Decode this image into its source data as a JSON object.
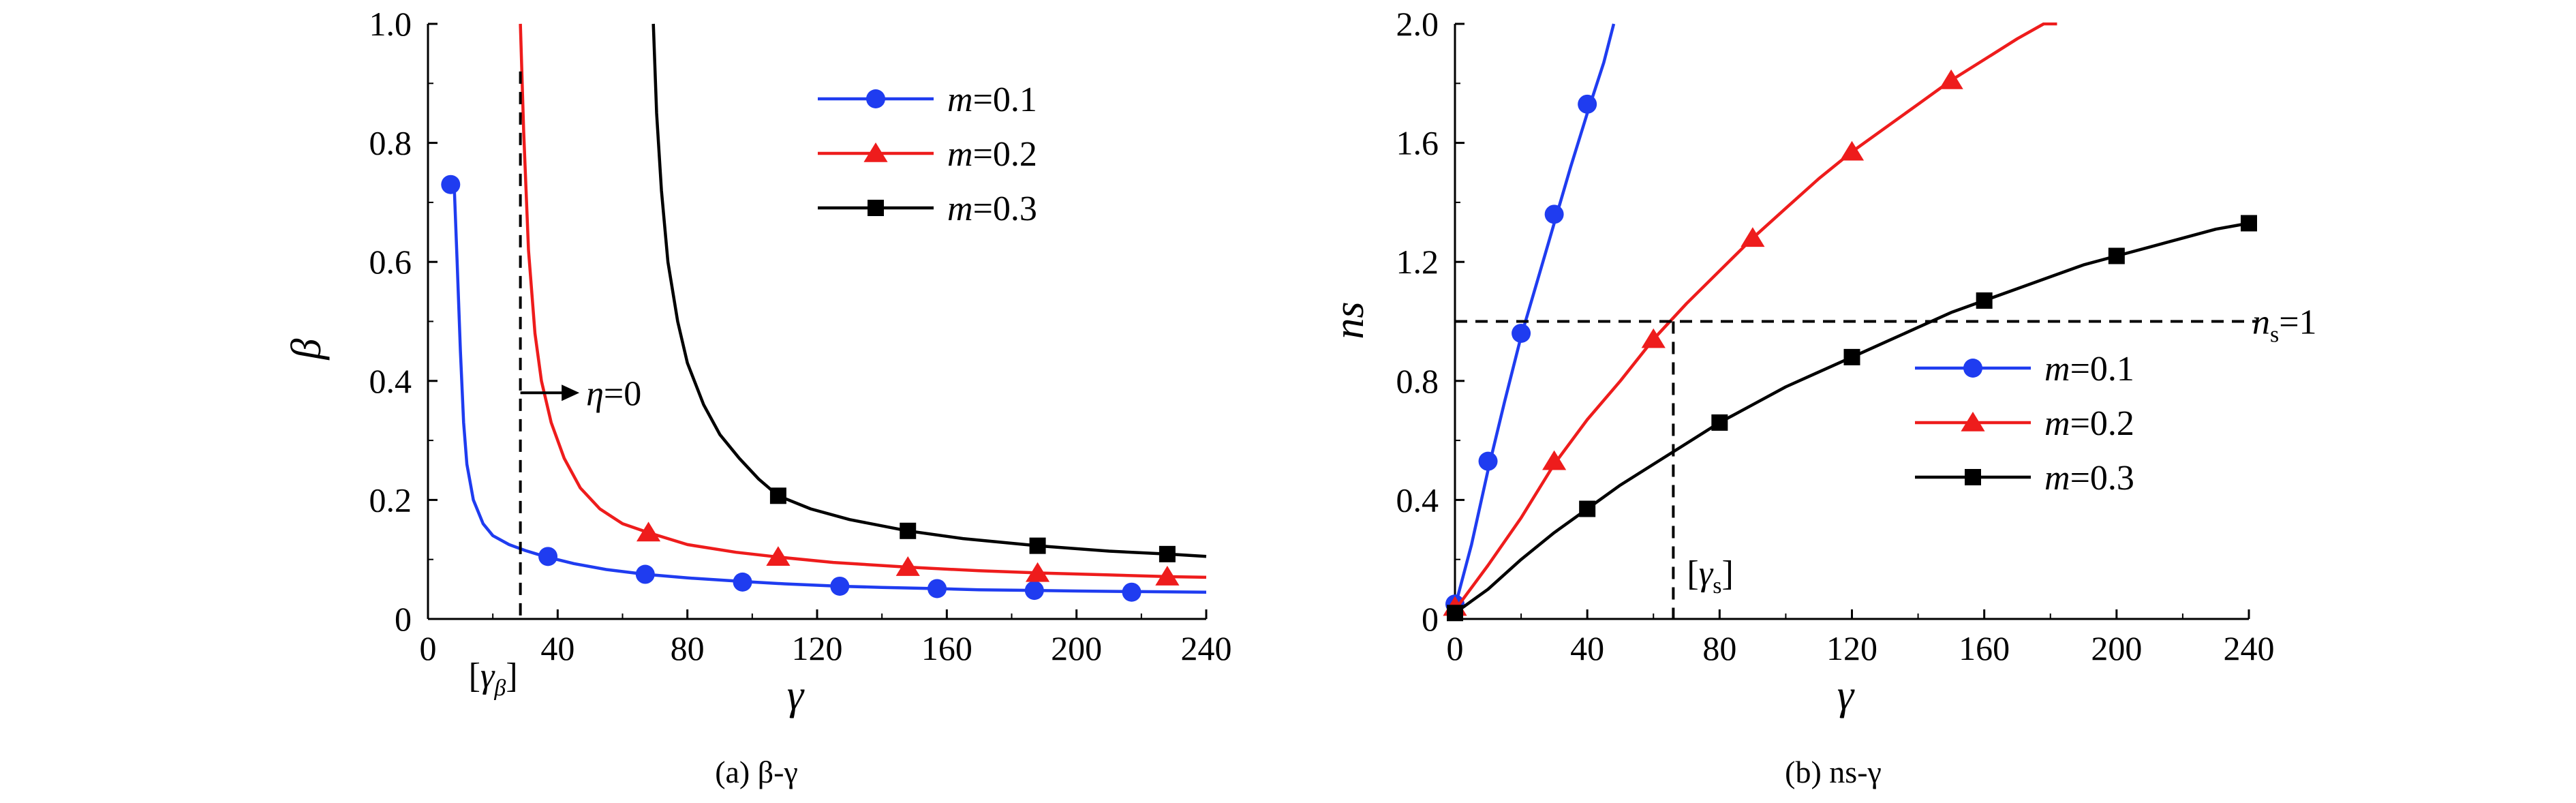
{
  "chart_data": [
    {
      "type": "line",
      "caption": "(a) β-γ",
      "xlabel": "γ",
      "ylabel": "β",
      "xlim": [
        0,
        240
      ],
      "ylim": [
        0,
        1.0
      ],
      "xticks": [
        "0",
        "40",
        "80",
        "120",
        "160",
        "200",
        "240"
      ],
      "yticks": [
        "0",
        "0.2",
        "0.4",
        "0.6",
        "0.8",
        "1.0"
      ],
      "legend_position": "top-right",
      "series": [
        {
          "name": "m=0.1",
          "color": "#1f3cf0",
          "marker": "circle",
          "curve": [
            [
              8,
              0.74
            ],
            [
              9,
              0.6
            ],
            [
              10,
              0.45
            ],
            [
              11,
              0.33
            ],
            [
              12,
              0.26
            ],
            [
              14,
              0.2
            ],
            [
              17,
              0.16
            ],
            [
              20,
              0.14
            ],
            [
              25,
              0.125
            ],
            [
              30,
              0.115
            ],
            [
              36,
              0.105
            ],
            [
              45,
              0.093
            ],
            [
              55,
              0.083
            ],
            [
              67,
              0.075
            ],
            [
              80,
              0.069
            ],
            [
              97,
              0.063
            ],
            [
              110,
              0.059
            ],
            [
              127,
              0.055
            ],
            [
              140,
              0.053
            ],
            [
              157,
              0.051
            ],
            [
              170,
              0.049
            ],
            [
              187,
              0.048
            ],
            [
              200,
              0.047
            ],
            [
              217,
              0.046
            ],
            [
              240,
              0.045
            ]
          ],
          "points": [
            [
              7,
              0.73
            ],
            [
              37,
              0.105
            ],
            [
              67,
              0.075
            ],
            [
              97,
              0.062
            ],
            [
              127,
              0.055
            ],
            [
              157,
              0.051
            ],
            [
              187,
              0.048
            ],
            [
              217,
              0.045
            ]
          ]
        },
        {
          "name": "m=0.2",
          "color": "#ee1c1c",
          "marker": "triangle",
          "curve": [
            [
              28.5,
              1.0
            ],
            [
              29.5,
              0.82
            ],
            [
              31,
              0.62
            ],
            [
              33,
              0.48
            ],
            [
              35,
              0.4
            ],
            [
              38,
              0.33
            ],
            [
              42,
              0.27
            ],
            [
              47,
              0.22
            ],
            [
              53,
              0.185
            ],
            [
              60,
              0.16
            ],
            [
              68,
              0.145
            ],
            [
              80,
              0.125
            ],
            [
              95,
              0.112
            ],
            [
              108,
              0.104
            ],
            [
              125,
              0.095
            ],
            [
              148,
              0.087
            ],
            [
              170,
              0.081
            ],
            [
              190,
              0.077
            ],
            [
              210,
              0.074
            ],
            [
              229,
              0.071
            ],
            [
              240,
              0.07
            ]
          ],
          "points": [
            [
              68,
              0.145
            ],
            [
              108,
              0.104
            ],
            [
              148,
              0.087
            ],
            [
              188,
              0.077
            ],
            [
              228,
              0.071
            ]
          ]
        },
        {
          "name": "m=0.3",
          "color": "#000000",
          "marker": "square",
          "curve": [
            [
              69.5,
              1.0
            ],
            [
              70.5,
              0.85
            ],
            [
              72,
              0.72
            ],
            [
              74,
              0.6
            ],
            [
              77,
              0.5
            ],
            [
              80,
              0.43
            ],
            [
              85,
              0.36
            ],
            [
              90,
              0.31
            ],
            [
              96,
              0.27
            ],
            [
              102,
              0.235
            ],
            [
              108,
              0.207
            ],
            [
              118,
              0.185
            ],
            [
              130,
              0.167
            ],
            [
              148,
              0.148
            ],
            [
              165,
              0.135
            ],
            [
              188,
              0.123
            ],
            [
              210,
              0.114
            ],
            [
              228,
              0.109
            ],
            [
              240,
              0.105
            ]
          ],
          "points": [
            [
              108,
              0.207
            ],
            [
              148,
              0.148
            ],
            [
              188,
              0.123
            ],
            [
              228,
              0.109
            ]
          ]
        }
      ],
      "annotations": {
        "vline": {
          "x": 28.5,
          "label": "[γβ]"
        },
        "arrow": {
          "label": "η=0",
          "from": [
            28.5,
            0.38
          ],
          "to": [
            45,
            0.38
          ]
        }
      }
    },
    {
      "type": "line",
      "caption": "(b) ns-γ",
      "xlabel": "γ",
      "ylabel": "ns",
      "xlim": [
        0,
        240
      ],
      "ylim": [
        0,
        2.0
      ],
      "xticks": [
        "0",
        "40",
        "80",
        "120",
        "160",
        "200",
        "240"
      ],
      "yticks": [
        "0",
        "0.4",
        "0.8",
        "1.2",
        "1.6",
        "2.0"
      ],
      "legend_position": "center-right",
      "series": [
        {
          "name": "m=0.1",
          "color": "#1f3cf0",
          "marker": "circle",
          "curve": [
            [
              0,
              0.04
            ],
            [
              5,
              0.25
            ],
            [
              10,
              0.5
            ],
            [
              15,
              0.73
            ],
            [
              20,
              0.95
            ],
            [
              25,
              1.14
            ],
            [
              30,
              1.33
            ],
            [
              35,
              1.52
            ],
            [
              40,
              1.7
            ],
            [
              45,
              1.87
            ],
            [
              48,
              2.0
            ]
          ],
          "points": [
            [
              0,
              0.05
            ],
            [
              10,
              0.53
            ],
            [
              20,
              0.96
            ],
            [
              30,
              1.36
            ],
            [
              40,
              1.73
            ]
          ]
        },
        {
          "name": "m=0.2",
          "color": "#ee1c1c",
          "marker": "triangle",
          "curve": [
            [
              0,
              0.03
            ],
            [
              10,
              0.18
            ],
            [
              20,
              0.34
            ],
            [
              30,
              0.52
            ],
            [
              40,
              0.67
            ],
            [
              50,
              0.8
            ],
            [
              60,
              0.94
            ],
            [
              70,
              1.06
            ],
            [
              80,
              1.17
            ],
            [
              90,
              1.28
            ],
            [
              100,
              1.38
            ],
            [
              110,
              1.48
            ],
            [
              120,
              1.57
            ],
            [
              130,
              1.65
            ],
            [
              140,
              1.73
            ],
            [
              150,
              1.81
            ],
            [
              160,
              1.88
            ],
            [
              170,
              1.95
            ],
            [
              178,
              2.0
            ],
            [
              182,
              2.0
            ]
          ],
          "points": [
            [
              0,
              0.04
            ],
            [
              30,
              0.53
            ],
            [
              60,
              0.94
            ],
            [
              90,
              1.28
            ],
            [
              120,
              1.57
            ],
            [
              150,
              1.81
            ]
          ]
        },
        {
          "name": "m=0.3",
          "color": "#000000",
          "marker": "square",
          "curve": [
            [
              0,
              0.02
            ],
            [
              10,
              0.1
            ],
            [
              20,
              0.2
            ],
            [
              30,
              0.29
            ],
            [
              40,
              0.37
            ],
            [
              50,
              0.45
            ],
            [
              60,
              0.52
            ],
            [
              70,
              0.59
            ],
            [
              80,
              0.66
            ],
            [
              90,
              0.72
            ],
            [
              100,
              0.78
            ],
            [
              110,
              0.83
            ],
            [
              120,
              0.88
            ],
            [
              130,
              0.93
            ],
            [
              140,
              0.98
            ],
            [
              150,
              1.03
            ],
            [
              160,
              1.07
            ],
            [
              170,
              1.11
            ],
            [
              180,
              1.15
            ],
            [
              190,
              1.19
            ],
            [
              200,
              1.22
            ],
            [
              210,
              1.25
            ],
            [
              220,
              1.28
            ],
            [
              230,
              1.31
            ],
            [
              240,
              1.33
            ]
          ],
          "points": [
            [
              0,
              0.02
            ],
            [
              40,
              0.37
            ],
            [
              80,
              0.66
            ],
            [
              120,
              0.88
            ],
            [
              160,
              1.07
            ],
            [
              200,
              1.22
            ],
            [
              240,
              1.33
            ]
          ]
        }
      ],
      "annotations": {
        "hline": {
          "y": 1.0,
          "label": "ns=1"
        },
        "vline": {
          "x": 66,
          "label": "[γs]"
        }
      }
    }
  ]
}
